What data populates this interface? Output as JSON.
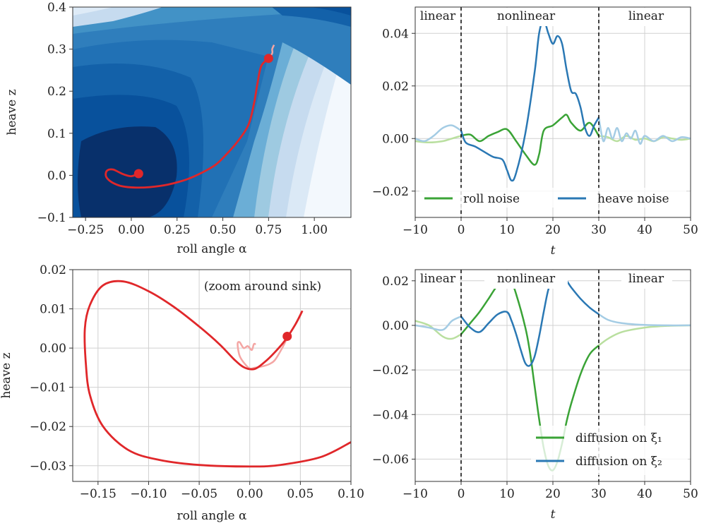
{
  "colors": {
    "traj": "#e0272a",
    "traj_light": "#f4a6a4",
    "roll": "#3aa336",
    "roll_light": "#b9df9f",
    "heave": "#2a78b4",
    "heave_light": "#a4cce4",
    "contour_dark": "#0b3a73",
    "contour_light": "#eaf2fb"
  },
  "chart_data": [
    {
      "id": "tl",
      "type": "contour-trajectory",
      "xlabel": "roll angle α",
      "ylabel": "heave z",
      "xlim": [
        -0.32,
        1.2
      ],
      "ylim": [
        -0.1,
        0.4
      ],
      "xticks": [
        -0.25,
        0.0,
        0.25,
        0.5,
        0.75,
        1.0
      ],
      "xtick_labels": [
        "−0.25",
        "0.00",
        "0.25",
        "0.50",
        "0.75",
        "1.00"
      ],
      "yticks": [
        -0.1,
        0.0,
        0.1,
        0.2,
        0.3,
        0.4
      ],
      "ytick_labels": [
        "−0.1",
        "0.0",
        "0.1",
        "0.2",
        "0.3",
        "0.4"
      ],
      "grid": false,
      "trajectory": {
        "x": [
          0.75,
          0.71,
          0.69,
          0.67,
          0.64,
          0.58,
          0.52,
          0.46,
          0.38,
          0.3,
          0.2,
          0.1,
          0.02,
          -0.05,
          -0.1,
          -0.13,
          -0.14,
          -0.13,
          -0.1,
          -0.07,
          -0.04,
          0.0,
          0.04
        ],
        "y": [
          0.278,
          0.26,
          0.22,
          0.17,
          0.12,
          0.08,
          0.05,
          0.025,
          0.005,
          -0.01,
          -0.022,
          -0.028,
          -0.029,
          -0.026,
          -0.018,
          -0.008,
          0.002,
          0.012,
          0.014,
          0.008,
          0.002,
          -0.002,
          0.004
        ]
      },
      "start_marker": {
        "x": 0.75,
        "y": 0.278
      },
      "end_marker": {
        "x": 0.04,
        "y": 0.004
      },
      "pre_segment": {
        "x": [
          0.75,
          0.77,
          0.77,
          0.78
        ],
        "y": [
          0.278,
          0.29,
          0.3,
          0.31
        ]
      }
    },
    {
      "id": "tr",
      "type": "line",
      "xlabel": "t",
      "ylabel": "",
      "xlim": [
        -10,
        50
      ],
      "ylim": [
        -0.03,
        0.05
      ],
      "xticks": [
        -10,
        0,
        10,
        20,
        30,
        40,
        50
      ],
      "xtick_labels": [
        "−10",
        "0",
        "10",
        "20",
        "30",
        "40",
        "50"
      ],
      "yticks": [
        -0.02,
        0.0,
        0.02,
        0.04
      ],
      "ytick_labels": [
        "−0.02",
        "0.00",
        "0.02",
        "0.04"
      ],
      "grid": true,
      "vlines": [
        0,
        30
      ],
      "region_labels": [
        "linear",
        "nonlinear",
        "linear"
      ],
      "legend_placement": "lower-center",
      "series": [
        {
          "name": "roll noise",
          "color_key": "roll",
          "x": [
            -10,
            -7,
            -4,
            -2,
            0,
            2,
            4,
            6,
            8,
            10,
            12,
            14,
            16,
            17,
            18,
            20,
            22,
            23,
            24,
            26,
            28,
            30,
            32,
            34,
            36,
            38,
            40,
            42,
            44,
            46,
            48,
            50
          ],
          "y": [
            -0.001,
            -0.0015,
            -0.001,
            0.0,
            0.001,
            0.0015,
            -0.001,
            0.001,
            0.0025,
            0.0035,
            -0.001,
            -0.006,
            -0.01,
            -0.006,
            0.003,
            0.005,
            0.008,
            0.009,
            0.006,
            0.003,
            0.006,
            0.001,
            0.0005,
            -0.001,
            0.001,
            -0.0005,
            0.0,
            -0.001,
            0.0005,
            0.0,
            -0.0005,
            0.0
          ]
        },
        {
          "name": "heave noise",
          "color_key": "heave",
          "x": [
            -10,
            -8,
            -6,
            -4,
            -2,
            0,
            1,
            3,
            5,
            7,
            9,
            10,
            11,
            12,
            14,
            16,
            17,
            18,
            19,
            20,
            21,
            22,
            23,
            24,
            25,
            26,
            27,
            28,
            29,
            30,
            31,
            32,
            33,
            34,
            35,
            36,
            37,
            38,
            39,
            40,
            42,
            44,
            46,
            48,
            50
          ],
          "y": [
            0.0,
            -0.001,
            0.001,
            0.004,
            0.005,
            0.003,
            -0.0015,
            -0.003,
            -0.005,
            -0.007,
            -0.008,
            -0.012,
            -0.016,
            -0.013,
            0.002,
            0.025,
            0.04,
            0.045,
            0.04,
            0.036,
            0.039,
            0.036,
            0.026,
            0.018,
            0.017,
            0.012,
            0.004,
            0.001,
            0.005,
            0.008,
            -0.001,
            0.004,
            0.0,
            0.004,
            -0.001,
            0.002,
            0.0,
            0.003,
            -0.002,
            0.001,
            -0.001,
            0.001,
            -0.001,
            0.0005,
            0.0
          ]
        }
      ]
    },
    {
      "id": "bl",
      "type": "trajectory",
      "xlabel": "roll angle α",
      "ylabel": "heave z",
      "annotation": "(zoom around sink)",
      "xlim": [
        -0.175,
        0.1
      ],
      "ylim": [
        -0.034,
        0.02
      ],
      "xticks": [
        -0.15,
        -0.1,
        -0.05,
        0.0,
        0.05,
        0.1
      ],
      "xtick_labels": [
        "−0.15",
        "−0.10",
        "−0.05",
        "0.00",
        "0.05",
        "0.10"
      ],
      "yticks": [
        -0.03,
        -0.02,
        -0.01,
        0.0,
        0.01,
        0.02
      ],
      "ytick_labels": [
        "−0.03",
        "−0.02",
        "−0.01",
        "0.00",
        "0.01",
        "0.02"
      ],
      "grid": true,
      "trajectory": {
        "x": [
          0.1,
          0.07,
          0.03,
          0.0,
          -0.05,
          -0.09,
          -0.12,
          -0.145,
          -0.158,
          -0.162,
          -0.163,
          -0.158,
          -0.145,
          -0.125,
          -0.1,
          -0.075,
          -0.05,
          -0.03,
          -0.015,
          -0.005,
          0.005,
          0.015,
          0.025,
          0.035,
          0.045,
          0.052
        ],
        "y": [
          -0.024,
          -0.0278,
          -0.0298,
          -0.0302,
          -0.0298,
          -0.0285,
          -0.026,
          -0.02,
          -0.012,
          -0.004,
          0.005,
          0.011,
          0.016,
          0.017,
          0.0145,
          0.0105,
          0.0055,
          0.001,
          -0.003,
          -0.005,
          -0.0053,
          -0.0035,
          -0.001,
          0.002,
          0.006,
          0.0095
        ]
      },
      "tail": {
        "x": [
          0.052,
          0.045,
          0.038,
          0.032,
          0.025,
          0.02,
          0.015,
          0.01,
          0.005,
          0.0,
          -0.005,
          -0.01,
          -0.012,
          -0.01,
          -0.006,
          -0.002,
          0.002,
          0.004,
          0.006
        ],
        "y": [
          0.0095,
          0.006,
          0.003,
          0.0,
          -0.003,
          -0.004,
          -0.0045,
          -0.0048,
          -0.005,
          -0.0052,
          -0.004,
          -0.002,
          0.001,
          0.0015,
          0.0,
          0.0005,
          -0.0005,
          0.001,
          0.001
        ]
      },
      "end_marker": {
        "x": 0.037,
        "y": 0.003
      }
    },
    {
      "id": "br",
      "type": "line",
      "xlabel": "t",
      "ylabel": "",
      "xlim": [
        -10,
        50
      ],
      "ylim": [
        -0.07,
        0.025
      ],
      "xticks": [
        -10,
        0,
        10,
        20,
        30,
        40,
        50
      ],
      "xtick_labels": [
        "−10",
        "0",
        "10",
        "20",
        "30",
        "40",
        "50"
      ],
      "yticks": [
        -0.06,
        -0.04,
        -0.02,
        0.0,
        0.02
      ],
      "ytick_labels": [
        "−0.06",
        "−0.04",
        "−0.02",
        "0.00",
        "0.02"
      ],
      "grid": true,
      "vlines": [
        0,
        30
      ],
      "region_labels": [
        "linear",
        "nonlinear",
        "linear"
      ],
      "legend_placement": "lower-right",
      "series": [
        {
          "name": "diffusion on ξ₁",
          "color_key": "roll",
          "x": [
            -10,
            -7,
            -4,
            -2,
            0,
            2,
            4,
            6,
            8,
            10,
            11,
            12,
            14,
            15,
            16,
            17,
            18,
            19,
            20,
            21,
            22,
            23,
            24,
            26,
            28,
            30,
            32,
            35,
            40,
            45,
            50
          ],
          "y": [
            0.002,
            0.0,
            -0.005,
            -0.006,
            -0.004,
            0.001,
            0.006,
            0.012,
            0.018,
            0.02,
            0.019,
            0.014,
            -0.001,
            -0.012,
            -0.027,
            -0.042,
            -0.055,
            -0.063,
            -0.065,
            -0.061,
            -0.053,
            -0.043,
            -0.035,
            -0.022,
            -0.013,
            -0.009,
            -0.006,
            -0.003,
            -0.001,
            -0.0002,
            0.0
          ]
        },
        {
          "name": "diffusion on ξ₂",
          "color_key": "heave",
          "x": [
            -10,
            -7,
            -4,
            -2,
            0,
            2,
            4,
            6,
            8,
            10,
            11,
            12,
            13,
            14,
            15,
            16,
            17,
            18,
            19,
            20,
            21,
            22,
            23,
            24,
            26,
            28,
            30,
            32,
            35,
            40,
            45,
            50
          ],
          "y": [
            0.0,
            -0.001,
            -0.002,
            0.002,
            0.004,
            -0.001,
            -0.003,
            0.001,
            0.005,
            0.006,
            0.002,
            -0.004,
            -0.011,
            -0.017,
            -0.018,
            -0.014,
            -0.005,
            0.006,
            0.016,
            0.021,
            0.022,
            0.022,
            0.02,
            0.017,
            0.012,
            0.008,
            0.005,
            0.0025,
            0.001,
            0.0002,
            0.0,
            0.0
          ]
        }
      ]
    }
  ]
}
